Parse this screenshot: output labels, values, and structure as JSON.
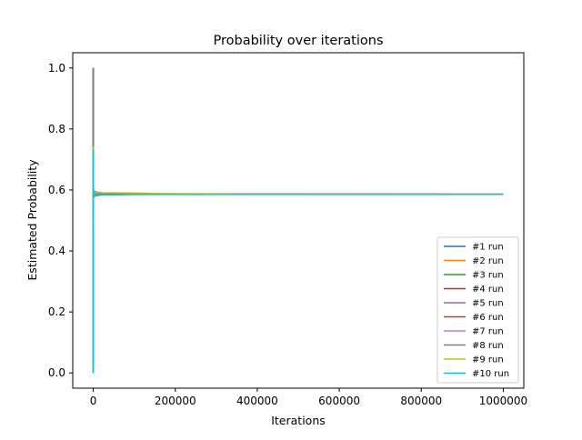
{
  "chart_data": {
    "type": "line",
    "title": "Probability over iterations",
    "xlabel": "Iterations",
    "ylabel": "Estimated Probability",
    "xlim": [
      -50000,
      1050000
    ],
    "ylim": [
      -0.05,
      1.05
    ],
    "x_ticks": [
      0,
      200000,
      400000,
      600000,
      800000,
      1000000
    ],
    "x_tick_labels": [
      "0",
      "200000",
      "400000",
      "600000",
      "800000",
      "1000000"
    ],
    "y_ticks": [
      0.0,
      0.2,
      0.4,
      0.6,
      0.8,
      1.0
    ],
    "y_tick_labels": [
      "0.0",
      "0.2",
      "0.4",
      "0.6",
      "0.8",
      "1.0"
    ],
    "grid": false,
    "legend_position": "lower-right",
    "series": [
      {
        "name": "#1 run",
        "color": "#1f77b4",
        "x": [
          1,
          2,
          5,
          10,
          50,
          200,
          1000,
          5000,
          20000,
          100000,
          400000,
          1000000
        ],
        "y": [
          1.0,
          0.5,
          0.8,
          0.6,
          0.64,
          0.61,
          0.595,
          0.588,
          0.587,
          0.586,
          0.5858,
          0.5858
        ]
      },
      {
        "name": "#2 run",
        "color": "#ff7f0e",
        "x": [
          1,
          2,
          5,
          10,
          50,
          200,
          1000,
          5000,
          20000,
          100000,
          400000,
          1000000
        ],
        "y": [
          0.0,
          0.5,
          0.6,
          0.7,
          0.56,
          0.575,
          0.59,
          0.592,
          0.589,
          0.587,
          0.586,
          0.5858
        ]
      },
      {
        "name": "#3 run",
        "color": "#2ca02c",
        "x": [
          1,
          2,
          5,
          10,
          50,
          200,
          1000,
          5000,
          20000,
          100000,
          400000,
          1000000
        ],
        "y": [
          1.0,
          1.0,
          0.6,
          0.5,
          0.62,
          0.6,
          0.598,
          0.594,
          0.59,
          0.588,
          0.586,
          0.5859
        ]
      },
      {
        "name": "#4 run",
        "color": "#d62728",
        "x": [
          1,
          2,
          5,
          10,
          50,
          200,
          1000,
          5000,
          20000,
          100000,
          400000,
          1000000
        ],
        "y": [
          0.0,
          0.5,
          0.4,
          0.6,
          0.58,
          0.59,
          0.585,
          0.583,
          0.585,
          0.5856,
          0.5857,
          0.5857
        ]
      },
      {
        "name": "#5 run",
        "color": "#9467bd",
        "x": [
          1,
          2,
          5,
          10,
          50,
          200,
          1000,
          5000,
          20000,
          100000,
          400000,
          1000000
        ],
        "y": [
          1.0,
          0.5,
          0.6,
          0.5,
          0.56,
          0.57,
          0.578,
          0.58,
          0.584,
          0.586,
          0.5859,
          0.5858
        ]
      },
      {
        "name": "#6 run",
        "color": "#8c564b",
        "x": [
          1,
          2,
          5,
          10,
          50,
          200,
          1000,
          5000,
          20000,
          100000,
          400000,
          1000000
        ],
        "y": [
          1.0,
          0.5,
          0.8,
          0.7,
          0.6,
          0.605,
          0.597,
          0.59,
          0.588,
          0.587,
          0.5862,
          0.586
        ]
      },
      {
        "name": "#7 run",
        "color": "#e377c2",
        "x": [
          1,
          2,
          5,
          10,
          50,
          200,
          1000,
          5000,
          20000,
          100000,
          400000,
          1000000
        ],
        "y": [
          0.0,
          0.5,
          0.6,
          0.6,
          0.58,
          0.588,
          0.584,
          0.586,
          0.587,
          0.5862,
          0.5858,
          0.5858
        ]
      },
      {
        "name": "#8 run",
        "color": "#7f7f7f",
        "x": [
          1,
          2,
          5,
          10,
          50,
          200,
          1000,
          5000,
          20000,
          100000,
          400000,
          1000000
        ],
        "y": [
          1.0,
          1.0,
          0.8,
          0.7,
          0.64,
          0.6,
          0.593,
          0.589,
          0.5875,
          0.587,
          0.5863,
          0.5861
        ]
      },
      {
        "name": "#9 run",
        "color": "#bcbd22",
        "x": [
          1,
          2,
          5,
          10,
          50,
          200,
          1000,
          5000,
          20000,
          100000,
          160000,
          400000,
          1000000
        ],
        "y": [
          0.0,
          0.5,
          0.6,
          0.74,
          0.62,
          0.6,
          0.595,
          0.592,
          0.591,
          0.59,
          0.588,
          0.586,
          0.5858
        ]
      },
      {
        "name": "#10 run",
        "color": "#17becf",
        "x": [
          1,
          2,
          5,
          10,
          50,
          200,
          1000,
          5000,
          20000,
          100000,
          400000,
          1000000
        ],
        "y": [
          0.0,
          0.5,
          0.73,
          0.6,
          0.57,
          0.576,
          0.58,
          0.582,
          0.584,
          0.5855,
          0.5857,
          0.5857
        ]
      }
    ]
  }
}
